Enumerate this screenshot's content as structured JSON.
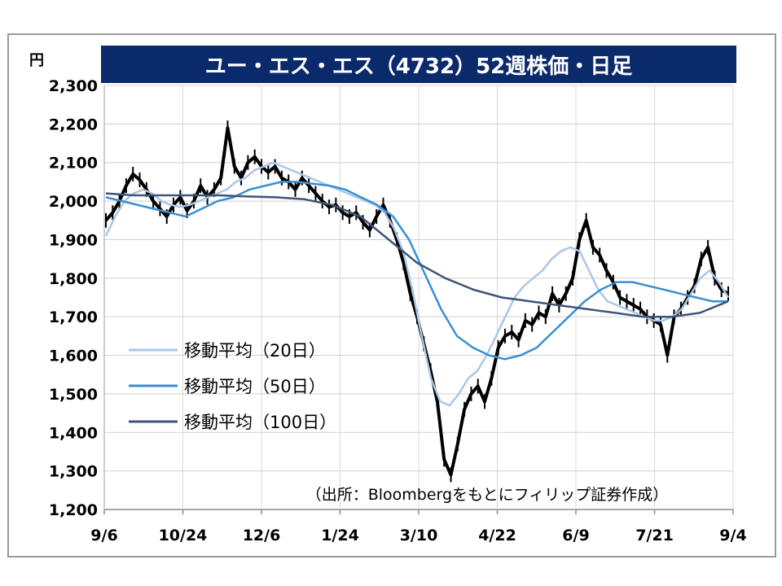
{
  "chart_data": {
    "type": "line",
    "title": "ユー・エス・エス（4732）52週株価・日足",
    "ylabel": "円",
    "ylim": [
      1200,
      2300
    ],
    "yticks": [
      "1,200",
      "1,300",
      "1,400",
      "1,500",
      "1,600",
      "1,700",
      "1,800",
      "1,900",
      "2,000",
      "2,100",
      "2,200",
      "2,300"
    ],
    "xticks": [
      "9/6",
      "10/24",
      "12/6",
      "1/24",
      "3/10",
      "4/22",
      "6/9",
      "7/21",
      "9/4"
    ],
    "grid": true,
    "legend_position": "left",
    "source_note": "（出所：Bloombergをもとにフィリップ証券作成）",
    "series": [
      {
        "name": "",
        "kind": "candlestick",
        "color": "#000000",
        "values": [
          1950,
          1970,
          2000,
          2040,
          2070,
          2055,
          2030,
          2000,
          1980,
          1960,
          1990,
          2010,
          1975,
          2000,
          2040,
          2010,
          2030,
          2060,
          2190,
          2090,
          2060,
          2100,
          2115,
          2090,
          2075,
          2090,
          2060,
          2050,
          2030,
          2060,
          2040,
          2020,
          2000,
          1985,
          1990,
          1970,
          1960,
          1970,
          1945,
          1925,
          1960,
          1990,
          1950,
          1900,
          1840,
          1760,
          1700,
          1630,
          1560,
          1480,
          1330,
          1290,
          1370,
          1460,
          1500,
          1520,
          1480,
          1540,
          1620,
          1650,
          1660,
          1640,
          1690,
          1680,
          1710,
          1700,
          1760,
          1730,
          1760,
          1800,
          1900,
          1950,
          1880,
          1860,
          1820,
          1790,
          1750,
          1740,
          1730,
          1720,
          1700,
          1690,
          1680,
          1600,
          1700,
          1720,
          1750,
          1780,
          1850,
          1880,
          1800,
          1770,
          1760
        ]
      },
      {
        "name": "移動平均（20日）",
        "color": "#a9c7e8",
        "values": [
          1910,
          1960,
          2000,
          2020,
          2030,
          2020,
          2000,
          1990,
          1985,
          1990,
          2000,
          2010,
          2020,
          2030,
          2050,
          2060,
          2080,
          2090,
          2100,
          2090,
          2080,
          2070,
          2060,
          2050,
          2040,
          2030,
          2020,
          2010,
          2000,
          1990,
          1970,
          1930,
          1870,
          1770,
          1650,
          1540,
          1480,
          1470,
          1500,
          1540,
          1560,
          1600,
          1650,
          1700,
          1750,
          1780,
          1800,
          1820,
          1850,
          1870,
          1880,
          1870,
          1820,
          1770,
          1740,
          1730,
          1720,
          1710,
          1700,
          1690,
          1690,
          1700,
          1720,
          1760,
          1800,
          1820,
          1790,
          1750
        ]
      },
      {
        "name": "移動平均（50日）",
        "color": "#3a8fd0",
        "values": [
          2010,
          2000,
          1990,
          1980,
          1970,
          1960,
          1980,
          2000,
          2010,
          2030,
          2040,
          2050,
          2050,
          2045,
          2040,
          2030,
          2010,
          1990,
          1960,
          1900,
          1810,
          1720,
          1650,
          1620,
          1600,
          1590,
          1600,
          1620,
          1660,
          1700,
          1740,
          1770,
          1790,
          1790,
          1780,
          1770,
          1760,
          1750,
          1740,
          1740
        ]
      },
      {
        "name": "移動平均（100日）",
        "color": "#3f5478",
        "values": [
          2020,
          2015,
          2015,
          2015,
          2015,
          2012,
          2010,
          2005,
          1990,
          1960,
          1900,
          1840,
          1800,
          1770,
          1750,
          1740,
          1730,
          1720,
          1710,
          1700,
          1700,
          1710,
          1740
        ]
      }
    ]
  }
}
